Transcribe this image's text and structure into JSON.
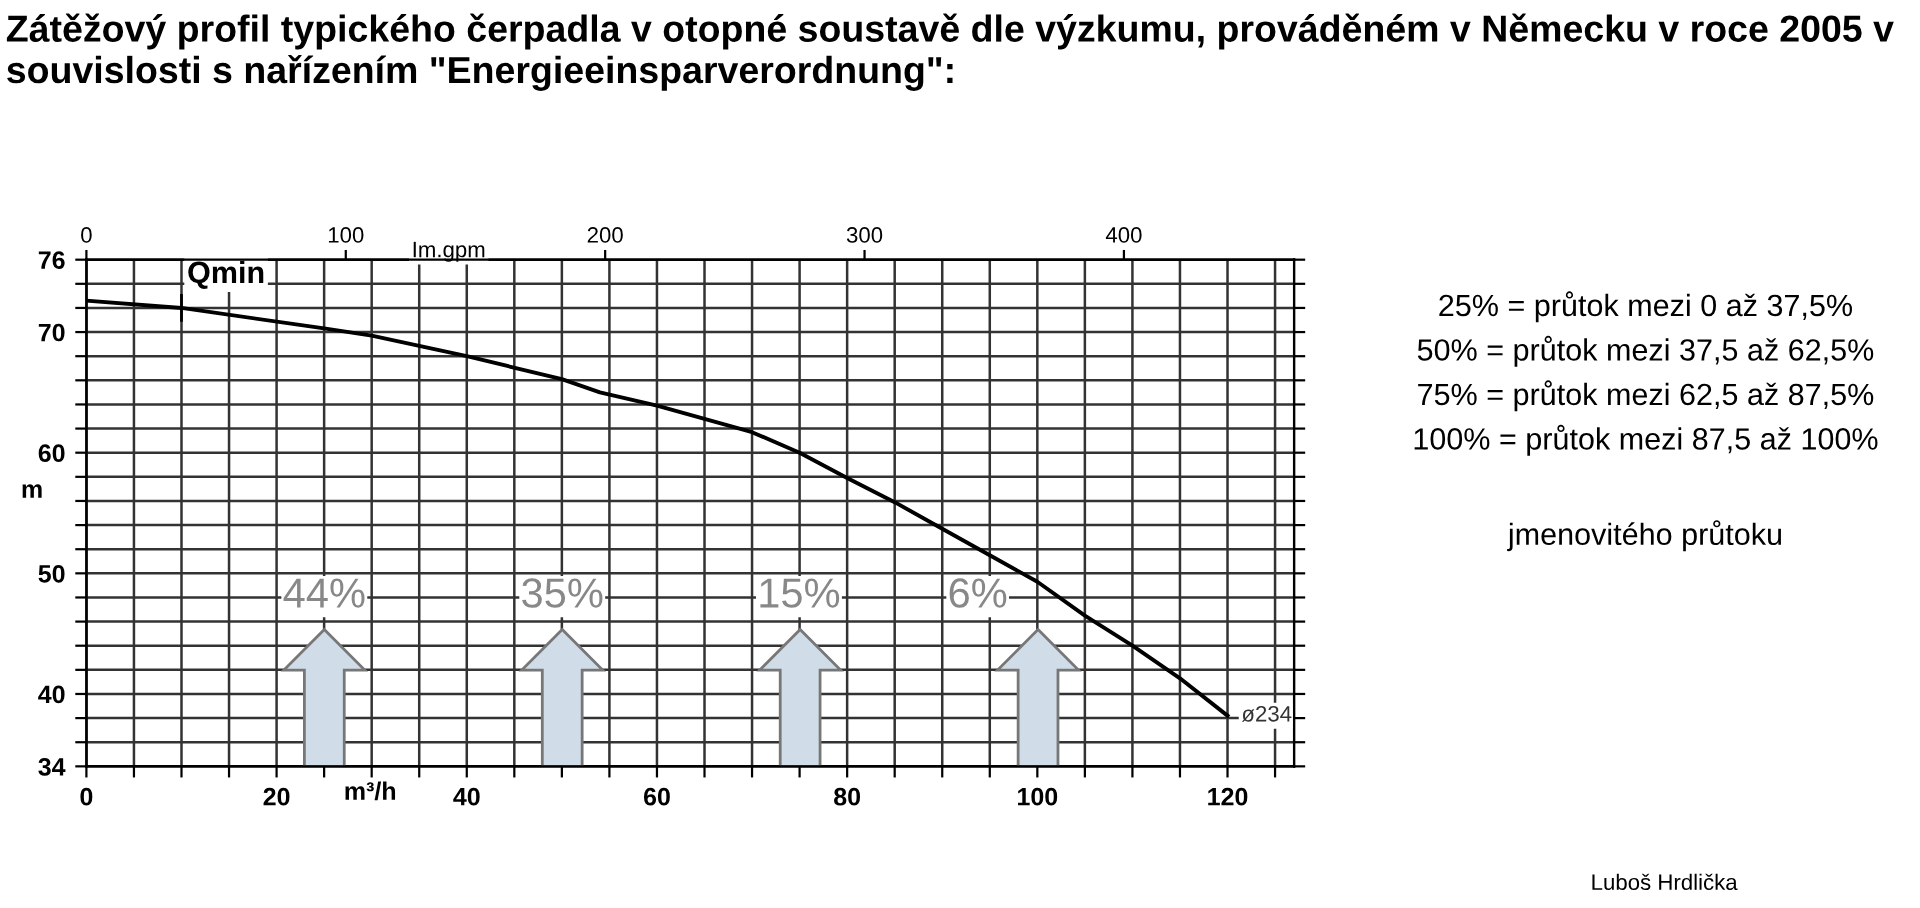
{
  "chart_data": {
    "type": "line",
    "title": "Zátěžový profil typického čerpadla v otopné soustavě dle výzkumu, prováděném v Německu v roce 2005 v souvislosti s nařízením \"Energieeinsparverordnung\":",
    "xlabel": "m³/h",
    "ylabel": "m",
    "x2label": "Im.gpm",
    "series": [
      {
        "color": "#000000",
        "x": [
          0,
          10,
          25,
          30,
          40,
          50,
          54,
          60,
          70,
          75,
          80,
          85,
          90,
          95,
          100,
          105,
          110,
          115,
          120
        ],
        "values": [
          72.6,
          72.0,
          70.3,
          69.7,
          68.0,
          66.1,
          65.0,
          63.9,
          61.7,
          60.0,
          57.9,
          55.9,
          53.7,
          51.5,
          49.3,
          46.5,
          44.0,
          41.3,
          38.2
        ]
      }
    ],
    "xlim": [
      0,
      127
    ],
    "ylim": [
      34,
      76
    ],
    "xticks": [
      0,
      {
        "value": 5,
        "label": null
      },
      {
        "value": 10,
        "label": null
      },
      {
        "value": 15,
        "label": null
      },
      20,
      {
        "value": 25,
        "label": null
      },
      {
        "value": 30,
        "label": null
      },
      {
        "value": 35,
        "label": null
      },
      40,
      {
        "value": 45,
        "label": null
      },
      {
        "value": 50,
        "label": null
      },
      {
        "value": 55,
        "label": null
      },
      60,
      {
        "value": 65,
        "label": null
      },
      {
        "value": 70,
        "label": null
      },
      {
        "value": 75,
        "label": null
      },
      80,
      {
        "value": 85,
        "label": null
      },
      {
        "value": 90,
        "label": null
      },
      {
        "value": 95,
        "label": null
      },
      100,
      {
        "value": 105,
        "label": null
      },
      {
        "value": 110,
        "label": null
      },
      {
        "value": 115,
        "label": null
      },
      120,
      {
        "value": 125,
        "label": null
      }
    ],
    "yticks": [
      34,
      {
        "value": 36,
        "label": null
      },
      {
        "value": 38,
        "label": null
      },
      40,
      {
        "value": 42,
        "label": null
      },
      {
        "value": 44,
        "label": null
      },
      {
        "value": 46,
        "label": null
      },
      {
        "value": 48,
        "label": null
      },
      50,
      {
        "value": 52,
        "label": null
      },
      {
        "value": 54,
        "label": null
      },
      {
        "value": 56,
        "label": null
      },
      {
        "value": 58,
        "label": null
      },
      60,
      {
        "value": 62,
        "label": null
      },
      {
        "value": 64,
        "label": null
      },
      {
        "value": 66,
        "label": null
      },
      {
        "value": 68,
        "label": null
      },
      70,
      {
        "value": 72,
        "label": null
      },
      {
        "value": 74,
        "label": null
      },
      76
    ],
    "x2lim": [
      0,
      465.6
    ],
    "x2ticks": [
      0,
      100,
      200,
      300,
      400
    ],
    "grid": true,
    "marker": "none",
    "line_style": "solid",
    "legend": false,
    "annotations": [
      {
        "text": "Qmin",
        "x": 10,
        "y": 72.0
      },
      {
        "text": "ø234",
        "x": 120,
        "y": 38.2
      },
      "44%",
      "35%",
      "15%",
      "6%",
      "25% = průtok mezi 0 až 37,5%",
      "50% = průtok mezi 37,5 až 62,5%",
      "75% = průtok mezi 62,5 až 87,5%",
      "100% = průtok mezi 87,5 až 100%",
      "jmenovitého průtoku",
      "Luboš Hrdlička"
    ]
  }
}
